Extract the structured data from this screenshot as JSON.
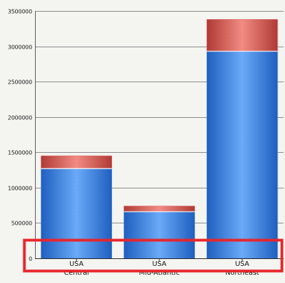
{
  "chart_data": {
    "type": "bar",
    "stacked": true,
    "categories": [
      "USA",
      "USA",
      "USA"
    ],
    "category_sublabels": [
      "Central",
      "Mid-Atlantic",
      "Northeast"
    ],
    "series": [
      {
        "color": "#3b7fe0",
        "values": [
          1270000,
          660000,
          2930000
        ]
      },
      {
        "color": "#d9534f",
        "values": [
          180000,
          80000,
          450000
        ]
      }
    ],
    "ylim": [
      0,
      3500000
    ],
    "yticks": [
      "0",
      "500000",
      "1000000",
      "1500000",
      "2000000",
      "2500000",
      "3000000",
      "3500000"
    ],
    "grid": true,
    "legend": "none"
  },
  "annotation": {
    "color": "#e8262b"
  }
}
